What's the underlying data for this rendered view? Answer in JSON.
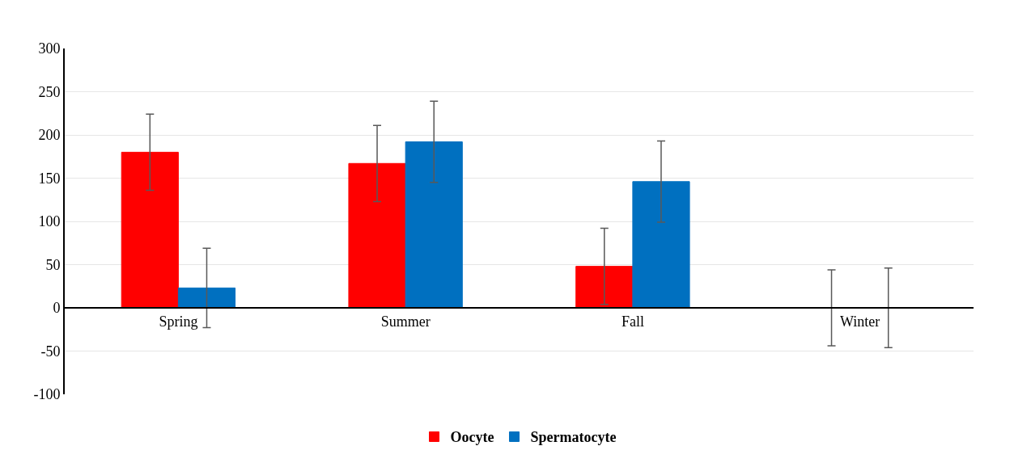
{
  "chart_data": {
    "type": "bar",
    "categories": [
      "Spring",
      "Summer",
      "Fall",
      "Winter"
    ],
    "series": [
      {
        "name": "Oocyte",
        "color": "#ff0000",
        "values": [
          180,
          167,
          48,
          0
        ],
        "errors": [
          44,
          44,
          44,
          44
        ]
      },
      {
        "name": "Spermatocyte",
        "color": "#0070c0",
        "values": [
          23,
          192,
          146,
          0
        ],
        "errors": [
          46,
          47,
          47,
          46
        ]
      }
    ],
    "ylim": [
      -100,
      300
    ],
    "yticks": [
      -100,
      -50,
      0,
      50,
      100,
      150,
      200,
      250,
      300
    ],
    "grid": "y",
    "legend": "bottom"
  }
}
